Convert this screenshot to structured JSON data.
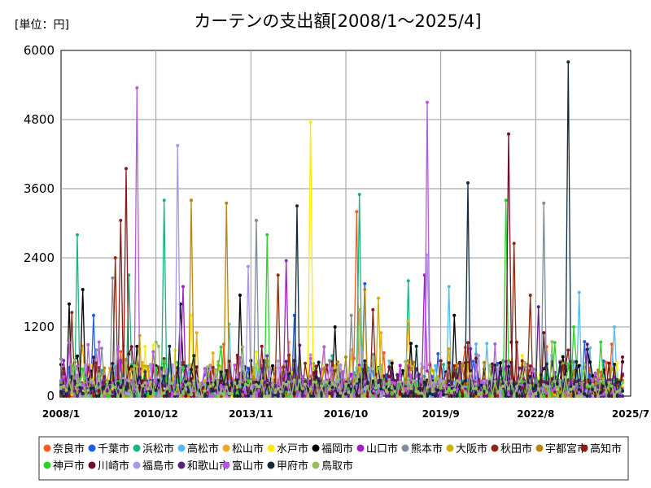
{
  "chart_data": {
    "type": "line",
    "title": "カーテンの支出額[2008/1～2025/4]",
    "unit_label": "[単位：円]",
    "xlabel": "",
    "ylabel": "",
    "ylim": [
      0,
      6000
    ],
    "y_ticks": [
      0,
      1200,
      2400,
      3600,
      4800,
      6000
    ],
    "x_range": [
      "2008-01",
      "2025-07"
    ],
    "x_ticks": [
      {
        "date": "2008-01",
        "label": "2008/1"
      },
      {
        "date": "2010-12",
        "label": "2010/12"
      },
      {
        "date": "2013-11",
        "label": "2013/11"
      },
      {
        "date": "2016-10",
        "label": "2016/10"
      },
      {
        "date": "2019-09",
        "label": "2019/9"
      },
      {
        "date": "2022-08",
        "label": "2022/8"
      },
      {
        "date": "2025-07",
        "label": "2025/7"
      }
    ],
    "grid": true,
    "legend_position": "bottom",
    "series": [
      {
        "name": "奈良市",
        "color": "#ff5a1f",
        "peaks": [
          [
            "2017-02",
            3200
          ],
          [
            "2013-01",
            900
          ],
          [
            "2024-12",
            900
          ]
        ]
      },
      {
        "name": "千葉市",
        "color": "#1a5fe6",
        "peaks": [
          [
            "2009-01",
            1400
          ],
          [
            "2017-05",
            1950
          ],
          [
            "2015-03",
            1400
          ]
        ]
      },
      {
        "name": "浜松市",
        "color": "#19b47a",
        "peaks": [
          [
            "2008-07",
            2800
          ],
          [
            "2010-02",
            2100
          ],
          [
            "2011-03",
            3400
          ],
          [
            "2017-03",
            3500
          ],
          [
            "2018-09",
            2000
          ]
        ]
      },
      {
        "name": "高松市",
        "color": "#55bbf0",
        "peaks": [
          [
            "2013-03",
            1250
          ],
          [
            "2019-12",
            1900
          ],
          [
            "2023-12",
            1800
          ],
          [
            "2025-01",
            1200
          ]
        ]
      },
      {
        "name": "松山市",
        "color": "#f0a91e",
        "peaks": [
          [
            "2012-03",
            1100
          ],
          [
            "2018-09",
            1300
          ],
          [
            "2017-11",
            1100
          ]
        ]
      },
      {
        "name": "水戸市",
        "color": "#ffea00",
        "peaks": [
          [
            "2015-09",
            4750
          ],
          [
            "2010-08",
            860
          ],
          [
            "2012-01",
            1400
          ]
        ]
      },
      {
        "name": "福岡市",
        "color": "#000000",
        "peaks": [
          [
            "2008-04",
            1600
          ],
          [
            "2008-09",
            1850
          ],
          [
            "2011-09",
            1600
          ],
          [
            "2013-07",
            1750
          ],
          [
            "2016-06",
            1200
          ],
          [
            "2020-02",
            1400
          ]
        ]
      },
      {
        "name": "山口市",
        "color": "#a020c8",
        "peaks": [
          [
            "2011-10",
            1900
          ],
          [
            "2014-12",
            2350
          ],
          [
            "2019-03",
            2100
          ]
        ]
      },
      {
        "name": "熊本市",
        "color": "#7f8c99",
        "peaks": [
          [
            "2009-08",
            2050
          ],
          [
            "2014-01",
            3050
          ],
          [
            "2016-12",
            1400
          ],
          [
            "2022-11",
            3350
          ]
        ]
      },
      {
        "name": "大阪市",
        "color": "#c8b200",
        "peaks": [
          [
            "2010-06",
            1050
          ],
          [
            "2017-10",
            1700
          ]
        ]
      },
      {
        "name": "秋田市",
        "color": "#8b2a10",
        "peaks": [
          [
            "2008-05",
            1450
          ],
          [
            "2009-09",
            2400
          ],
          [
            "2014-09",
            2100
          ],
          [
            "2021-12",
            2650
          ],
          [
            "2022-06",
            1750
          ]
        ]
      },
      {
        "name": "宇都宮市",
        "color": "#b8860b",
        "peaks": [
          [
            "2012-01",
            3400
          ],
          [
            "2013-02",
            3350
          ],
          [
            "2017-05",
            1850
          ]
        ]
      },
      {
        "name": "高知市",
        "color": "#8b1a1a",
        "peaks": [
          [
            "2010-01",
            3950
          ],
          [
            "2009-11",
            3050
          ],
          [
            "2017-08",
            1500
          ]
        ]
      },
      {
        "name": "神戸市",
        "color": "#2ad42a",
        "peaks": [
          [
            "2014-05",
            2800
          ],
          [
            "2021-09",
            3400
          ],
          [
            "2023-10",
            1200
          ]
        ]
      },
      {
        "name": "川崎市",
        "color": "#6b0f2a",
        "peaks": [
          [
            "2021-10",
            4550
          ],
          [
            "2022-11",
            1100
          ]
        ]
      },
      {
        "name": "福島市",
        "color": "#aa96e6",
        "peaks": [
          [
            "2011-08",
            4350
          ],
          [
            "2013-10",
            2250
          ],
          [
            "2019-04",
            2450
          ]
        ]
      },
      {
        "name": "和歌山市",
        "color": "#5a1f7f",
        "peaks": [
          [
            "2022-09",
            1550
          ],
          [
            "2024-03",
            900
          ]
        ]
      },
      {
        "name": "富山市",
        "color": "#b45adc",
        "peaks": [
          [
            "2010-05",
            5350
          ],
          [
            "2019-04",
            5100
          ]
        ]
      },
      {
        "name": "甲府市",
        "color": "#0f2a3c",
        "peaks": [
          [
            "2015-04",
            3300
          ],
          [
            "2020-07",
            3700
          ],
          [
            "2023-08",
            5800
          ]
        ]
      },
      {
        "name": "鳥取市",
        "color": "#96be64",
        "peaks": [
          [
            "2017-03",
            1500
          ],
          [
            "2018-08",
            600
          ]
        ]
      }
    ]
  }
}
